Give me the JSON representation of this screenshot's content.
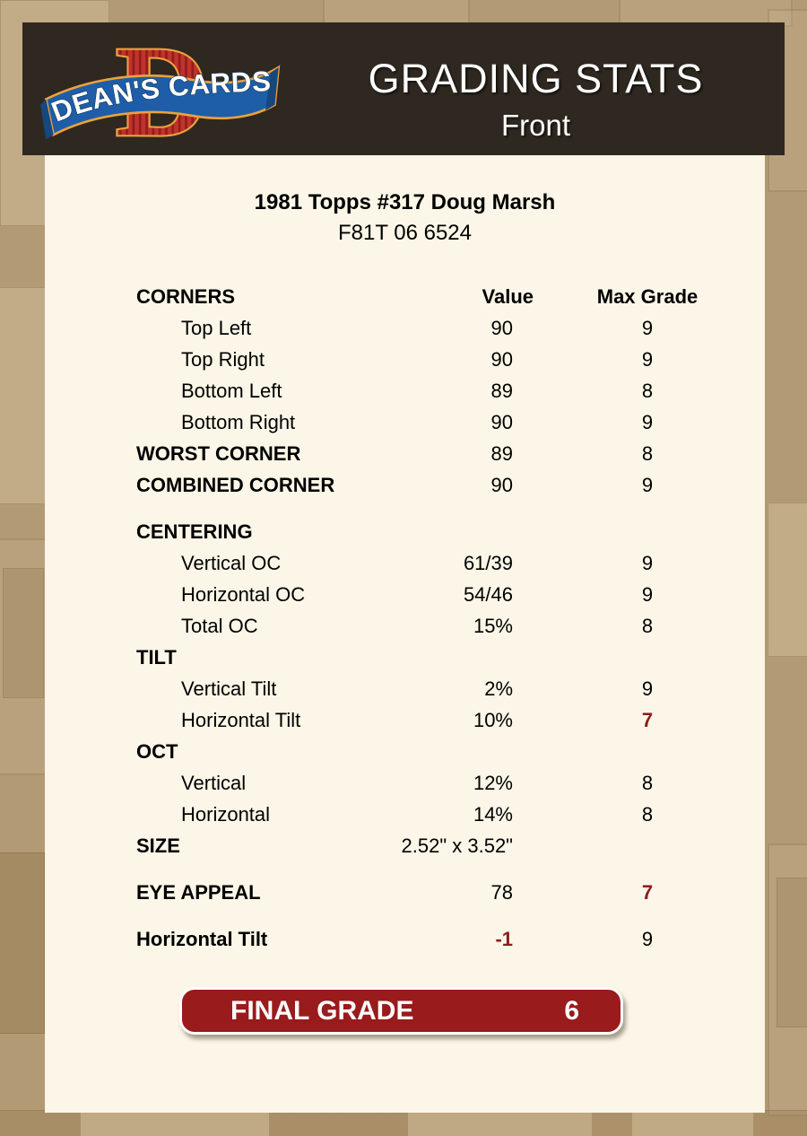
{
  "header": {
    "logo_letter": "D",
    "logo_text": "DEAN'S CARDS",
    "title": "GRADING STATS",
    "subtitle": "Front"
  },
  "card": {
    "title": "1981 Topps #317 Doug Marsh",
    "serial": "F81T 06 6524"
  },
  "table": {
    "rows": [
      {
        "label": "CORNERS",
        "value": "Value",
        "grade": "Max Grade",
        "header": true
      },
      {
        "label": "Top Left",
        "value": "90",
        "grade": "9",
        "indent": true
      },
      {
        "label": "Top Right",
        "value": "90",
        "grade": "9",
        "indent": true
      },
      {
        "label": "Bottom Left",
        "value": "89",
        "grade": "8",
        "indent": true
      },
      {
        "label": "Bottom Right",
        "value": "90",
        "grade": "9",
        "indent": true
      },
      {
        "label": "WORST CORNER",
        "value": "89",
        "grade": "8",
        "bold": true
      },
      {
        "label": "COMBINED CORNER",
        "value": "90",
        "grade": "9",
        "bold": true
      },
      {
        "label": "CENTERING",
        "value": "",
        "grade": "",
        "bold": true,
        "gap": true
      },
      {
        "label": "Vertical OC",
        "value": "61/39",
        "grade": "9",
        "indent": true
      },
      {
        "label": "Horizontal OC",
        "value": "54/46",
        "grade": "9",
        "indent": true
      },
      {
        "label": "Total OC",
        "value": "15%",
        "grade": "8",
        "indent": true
      },
      {
        "label": "TILT",
        "value": "",
        "grade": "",
        "bold": true
      },
      {
        "label": "Vertical Tilt",
        "value": "2%",
        "grade": "9",
        "indent": true
      },
      {
        "label": "Horizontal Tilt",
        "value": "10%",
        "grade": "7",
        "indent": true,
        "redGrade": true
      },
      {
        "label": "OCT",
        "value": "",
        "grade": "",
        "bold": true
      },
      {
        "label": "Vertical",
        "value": "12%",
        "grade": "8",
        "indent": true
      },
      {
        "label": "Horizontal",
        "value": "14%",
        "grade": "8",
        "indent": true
      },
      {
        "label": "SIZE",
        "value": "2.52\" x 3.52\"",
        "grade": "",
        "bold": true
      },
      {
        "label": "EYE APPEAL",
        "value": "78",
        "grade": "7",
        "bold": true,
        "redGrade": true,
        "gap": true
      },
      {
        "label": "Horizontal Tilt",
        "value": "-1",
        "grade": "9",
        "bold": true,
        "redValue": true,
        "gap": true
      }
    ]
  },
  "final_grade": {
    "label": "FINAL GRADE",
    "value": "6"
  },
  "colors": {
    "tan": "#B29A74",
    "cream": "#FBF6E7",
    "header_bg": "#2F2820",
    "maroon": "#991B1B",
    "red_text": "#8E1B1B",
    "logo_red": "#C2322C",
    "logo_blue": "#1E5EA8",
    "logo_gold": "#ECA23C"
  }
}
